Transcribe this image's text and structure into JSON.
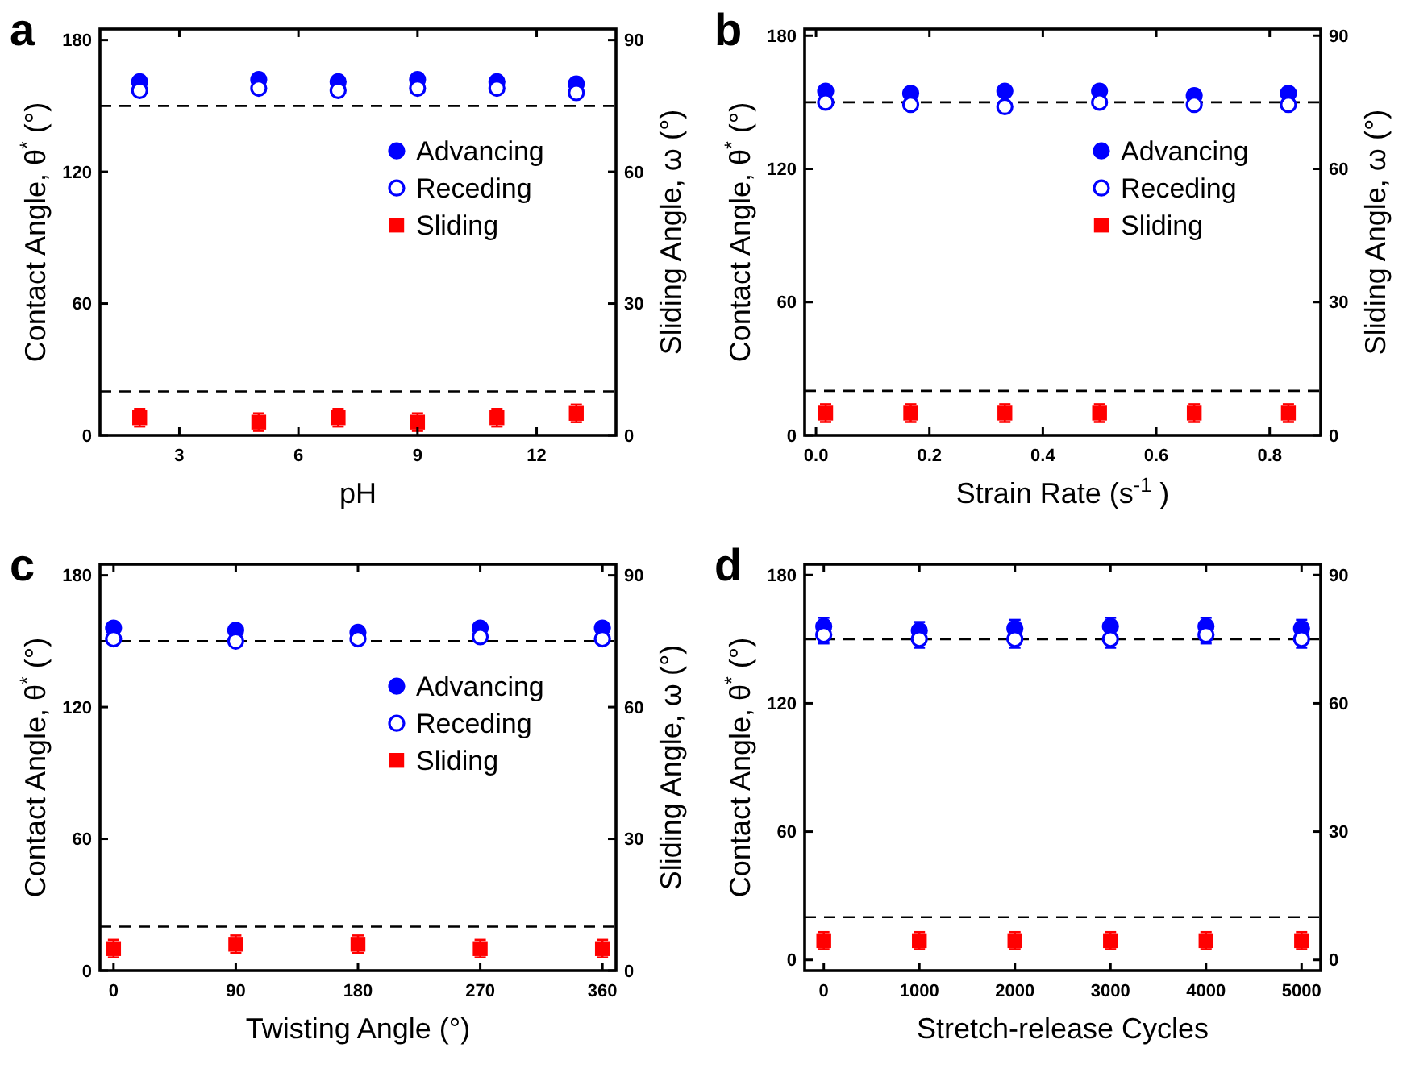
{
  "chart_data": [
    {
      "type": "scatter",
      "title": "a",
      "xlabel": "pH",
      "ylabel": "Contact Angle, θ$^{*}$ (°)",
      "y2label": "Sliding Angle, ω (°)",
      "x": [
        2,
        5,
        7,
        9,
        11,
        13
      ],
      "xlim": [
        1,
        14
      ],
      "xticks": [
        3,
        6,
        9,
        12
      ],
      "ylim": [
        0,
        185
      ],
      "yticks": [
        0,
        60,
        120,
        180
      ],
      "y2lim": [
        0,
        92.5
      ],
      "y2ticks": [
        0,
        30,
        60,
        90
      ],
      "legend": "right",
      "grid": false,
      "series": [
        {
          "name": "Advancing",
          "color": "#0000ff",
          "marker": "circle",
          "values": [
            161,
            162,
            161,
            162,
            161,
            160
          ]
        },
        {
          "name": "Receding",
          "color": "#0000ff",
          "marker": "circle",
          "values": [
            157,
            158,
            157,
            158,
            158,
            156
          ]
        },
        {
          "name": "Sliding",
          "color": "#ff0000",
          "marker": "square",
          "axis": "y2",
          "values": [
            4,
            3,
            4,
            3,
            4,
            5
          ],
          "errors": [
            2,
            2,
            2,
            2,
            2,
            2
          ]
        }
      ],
      "ref_lines": [
        {
          "axis": "y",
          "value": 150,
          "color": "#000000",
          "line_style": "dashed"
        },
        {
          "axis": "y2",
          "value": 10,
          "color": "#000000",
          "line_style": "dashed"
        }
      ]
    },
    {
      "type": "scatter",
      "title": "b",
      "xlabel": "Strain Rate (s$^{-1}$ )",
      "ylabel": "Contact Angle, θ$^{*}$ (°)",
      "y2label": "Sliding Angle, ω (°)",
      "x": [
        0.017,
        0.167,
        0.333,
        0.5,
        0.667,
        0.833
      ],
      "xlim": [
        -0.02,
        0.89
      ],
      "xticks": [
        {
          "value": 0,
          "label": "0.0"
        },
        0.2,
        0.4,
        0.6,
        0.8
      ],
      "ylim": [
        0,
        183
      ],
      "yticks": [
        0,
        60,
        120,
        180
      ],
      "y2lim": [
        0,
        91.5
      ],
      "y2ticks": [
        0,
        30,
        60,
        90
      ],
      "legend": "right",
      "grid": false,
      "series": [
        {
          "name": "Advancing",
          "color": "#0000ff",
          "marker": "circle",
          "values": [
            155,
            154,
            155,
            155,
            153,
            154
          ]
        },
        {
          "name": "Receding",
          "color": "#0000ff",
          "marker": "circle",
          "values": [
            150,
            149,
            148,
            150,
            149,
            149
          ]
        },
        {
          "name": "Sliding",
          "color": "#ff0000",
          "marker": "square",
          "axis": "y2",
          "values": [
            5,
            5,
            5,
            5,
            5,
            5
          ],
          "errors": [
            2,
            2,
            2,
            2,
            2,
            2
          ]
        }
      ],
      "ref_lines": [
        {
          "axis": "y",
          "value": 150,
          "color": "#000000",
          "line_style": "dashed"
        },
        {
          "axis": "y2",
          "value": 10,
          "color": "#000000",
          "line_style": "dashed"
        }
      ]
    },
    {
      "type": "scatter",
      "title": "c",
      "xlabel": "Twisting Angle (°)",
      "ylabel": "Contact Angle, θ$^{*}$ (°)",
      "y2label": "Sliding Angle, ω (°)",
      "x": [
        0,
        90,
        180,
        270,
        360
      ],
      "xlim": [
        -10,
        370
      ],
      "xticks": [
        0,
        90,
        180,
        270,
        360
      ],
      "ylim": [
        0,
        185
      ],
      "yticks": [
        0,
        60,
        120,
        180
      ],
      "y2lim": [
        0,
        92.5
      ],
      "y2ticks": [
        0,
        30,
        60,
        90
      ],
      "legend": "right",
      "grid": false,
      "series": [
        {
          "name": "Advancing",
          "color": "#0000ff",
          "marker": "circle",
          "values": [
            156,
            155,
            154,
            156,
            156
          ]
        },
        {
          "name": "Receding",
          "color": "#0000ff",
          "marker": "circle",
          "values": [
            151,
            150,
            151,
            152,
            151
          ]
        },
        {
          "name": "Sliding",
          "color": "#ff0000",
          "marker": "square",
          "axis": "y2",
          "values": [
            5,
            6,
            6,
            5,
            5
          ],
          "errors": [
            2,
            2,
            2,
            2,
            2
          ]
        }
      ],
      "ref_lines": [
        {
          "axis": "y",
          "value": 150,
          "color": "#000000",
          "line_style": "dashed"
        },
        {
          "axis": "y2",
          "value": 10,
          "color": "#000000",
          "line_style": "dashed"
        }
      ]
    },
    {
      "type": "scatter",
      "title": "d",
      "xlabel": "Stretch-release Cycles",
      "ylabel": "Contact Angle, θ$^{*}$ (°)",
      "x": [
        0,
        1000,
        2000,
        3000,
        4000,
        5000
      ],
      "xlim": [
        -200,
        5200
      ],
      "xticks": [
        0,
        1000,
        2000,
        3000,
        4000,
        5000
      ],
      "ylim": [
        -5,
        185
      ],
      "yticks": [
        0,
        60,
        120,
        180
      ],
      "y2lim": [
        -2.5,
        92.5
      ],
      "y2ticks": [
        0,
        30,
        60,
        90
      ],
      "legend": false,
      "grid": false,
      "series": [
        {
          "color": "#0000ff",
          "marker": "circle",
          "values": [
            156,
            154,
            155,
            156,
            156,
            155
          ],
          "errors": [
            4,
            4,
            4,
            4,
            4,
            4
          ]
        },
        {
          "color": "#0000ff",
          "marker": "circle",
          "values": [
            152,
            150,
            150,
            150,
            152,
            150
          ],
          "errors": [
            4,
            4,
            4,
            4,
            4,
            4
          ]
        },
        {
          "color": "#ff0000",
          "marker": "square",
          "axis": "y2",
          "values": [
            4.5,
            4.5,
            4.5,
            4.5,
            4.5,
            4.5
          ],
          "errors": [
            2,
            2,
            2,
            2,
            2,
            2
          ]
        }
      ],
      "ref_lines": [
        {
          "axis": "y",
          "value": 150,
          "color": "#000000",
          "line_style": "dashed"
        },
        {
          "axis": "y2",
          "value": 10,
          "color": "#000000",
          "line_style": "dashed"
        }
      ]
    }
  ]
}
